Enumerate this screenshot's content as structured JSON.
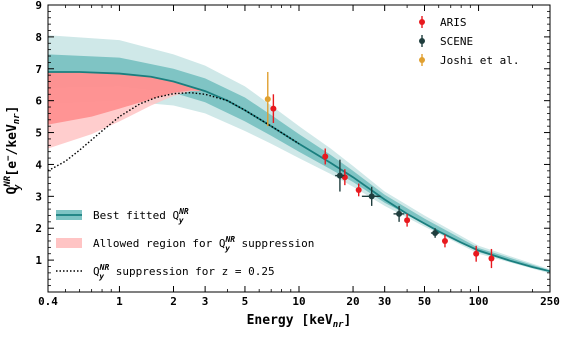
{
  "chart_data": {
    "type": "scatter",
    "xscale": "log",
    "xlim": [
      0.4,
      250
    ],
    "ylim": [
      0,
      9
    ],
    "xlabel": "Energy [keV",
    "xlabel_sub": "nr",
    "xlabel_close": "]",
    "ylabel_main": "Q",
    "ylabel_sub": "y",
    "ylabel_sup": "NR",
    "ylabel_unit": " [e",
    "ylabel_unit2": "/keV",
    "ylabel_unit_sub": "nr",
    "ylabel_close": "]",
    "xticks": [
      {
        "value": 0.4,
        "label": "0.4"
      },
      {
        "value": 1,
        "label": "1"
      },
      {
        "value": 2,
        "label": "2"
      },
      {
        "value": 3,
        "label": "3"
      },
      {
        "value": 5,
        "label": "5"
      },
      {
        "value": 10,
        "label": "10"
      },
      {
        "value": 20,
        "label": "20"
      },
      {
        "value": 30,
        "label": "30"
      },
      {
        "value": 50,
        "label": "50"
      },
      {
        "value": 100,
        "label": "100"
      },
      {
        "value": 250,
        "label": "250"
      }
    ],
    "yticks": [
      {
        "value": 1,
        "label": "1"
      },
      {
        "value": 2,
        "label": "2"
      },
      {
        "value": 3,
        "label": "3"
      },
      {
        "value": 4,
        "label": "4"
      },
      {
        "value": 5,
        "label": "5"
      },
      {
        "value": 6,
        "label": "6"
      },
      {
        "value": 7,
        "label": "7"
      },
      {
        "value": 8,
        "label": "8"
      },
      {
        "value": 9,
        "label": "9"
      }
    ],
    "best_fit": {
      "x": [
        0.4,
        0.6,
        1.0,
        1.5,
        2.0,
        3.0,
        4.0,
        5.0,
        7.0,
        10,
        15,
        20,
        30,
        40,
        60,
        80,
        100,
        150,
        200,
        250
      ],
      "y": [
        6.9,
        6.9,
        6.85,
        6.75,
        6.6,
        6.3,
        6.0,
        5.7,
        5.2,
        4.65,
        4.05,
        3.6,
        2.9,
        2.45,
        1.9,
        1.55,
        1.3,
        0.98,
        0.78,
        0.65
      ],
      "color": "#1a7f7f"
    },
    "band_1sigma": {
      "x": [
        0.4,
        1.0,
        2.0,
        3.0,
        5.0,
        7.0,
        10,
        15,
        20,
        30,
        50,
        100,
        250
      ],
      "lower": [
        6.4,
        6.45,
        6.25,
        5.95,
        5.35,
        4.9,
        4.4,
        3.85,
        3.45,
        2.8,
        2.15,
        1.25,
        0.62
      ],
      "upper": [
        7.45,
        7.35,
        7.0,
        6.7,
        6.1,
        5.55,
        4.95,
        4.3,
        3.8,
        3.05,
        2.3,
        1.38,
        0.68
      ],
      "color": "#7fc4c4"
    },
    "band_2sigma": {
      "x": [
        0.4,
        1.0,
        2.0,
        3.0,
        5.0,
        7.0,
        10,
        15,
        20,
        30,
        50,
        100,
        250
      ],
      "lower": [
        5.9,
        6.0,
        5.85,
        5.6,
        5.05,
        4.65,
        4.2,
        3.7,
        3.3,
        2.7,
        2.05,
        1.2,
        0.58
      ],
      "upper": [
        8.05,
        7.9,
        7.45,
        7.1,
        6.45,
        5.85,
        5.2,
        4.5,
        3.95,
        3.15,
        2.4,
        1.45,
        0.71
      ],
      "color": "#cfe8e8"
    },
    "suppression_region_outer": {
      "x": [
        0.4,
        0.7,
        1.0,
        1.5,
        2.0,
        2.5,
        3.0
      ],
      "lower": [
        4.5,
        4.95,
        5.35,
        5.85,
        6.15,
        6.3,
        6.3
      ],
      "upper": [
        6.9,
        6.9,
        6.85,
        6.75,
        6.6,
        6.45,
        6.3
      ],
      "color": "#ffc4c4"
    },
    "suppression_region_inner": {
      "x": [
        0.4,
        0.7,
        1.0,
        1.5,
        2.0,
        2.5,
        3.0
      ],
      "lower": [
        5.25,
        5.5,
        5.75,
        6.05,
        6.25,
        6.32,
        6.3
      ],
      "upper": [
        6.9,
        6.9,
        6.85,
        6.75,
        6.6,
        6.45,
        6.3
      ],
      "color": "#ff8a8a"
    },
    "suppression_curve": {
      "x": [
        0.4,
        0.5,
        0.6,
        0.8,
        1.0,
        1.3,
        1.6,
        2.0,
        2.5,
        3.0,
        4.0,
        5.0,
        7.0,
        10
      ],
      "y": [
        3.8,
        4.1,
        4.45,
        5.05,
        5.5,
        5.9,
        6.1,
        6.22,
        6.25,
        6.2,
        6.0,
        5.7,
        5.2,
        4.65
      ],
      "color": "#000000"
    },
    "series": [
      {
        "name": "ARIS",
        "color": "#e8191e",
        "points": [
          {
            "x": 7.2,
            "y": 5.75,
            "yerr": 0.45,
            "xerr": 0
          },
          {
            "x": 14,
            "y": 4.25,
            "yerr": 0.25,
            "xerr": 0
          },
          {
            "x": 18,
            "y": 3.6,
            "yerr": 0.25,
            "xerr": 0
          },
          {
            "x": 21.5,
            "y": 3.2,
            "yerr": 0.2,
            "xerr": 0
          },
          {
            "x": 40,
            "y": 2.25,
            "yerr": 0.2,
            "xerr": 0
          },
          {
            "x": 65,
            "y": 1.6,
            "yerr": 0.2,
            "xerr": 0
          },
          {
            "x": 97,
            "y": 1.2,
            "yerr": 0.25,
            "xerr": 0
          },
          {
            "x": 118,
            "y": 1.05,
            "yerr": 0.3,
            "xerr": 0
          }
        ]
      },
      {
        "name": "SCENE",
        "color": "#1f3d3d",
        "points": [
          {
            "x": 16.9,
            "y": 3.65,
            "yerr": 0.5,
            "xerr": 1.0
          },
          {
            "x": 25.4,
            "y": 3.0,
            "yerr": 0.3,
            "xerr": 3.0
          },
          {
            "x": 36.1,
            "y": 2.45,
            "yerr": 0.25,
            "xerr": 2.5
          },
          {
            "x": 57.3,
            "y": 1.85,
            "yerr": 0.15,
            "xerr": 3.0
          }
        ]
      },
      {
        "name": "Joshi et al.",
        "color": "#e0a030",
        "points": [
          {
            "x": 6.7,
            "y": 6.05,
            "yerr": 0.85,
            "xerr": 0
          }
        ]
      }
    ],
    "legend_top": [
      {
        "label": "ARIS",
        "color": "#e8191e"
      },
      {
        "label": "SCENE",
        "color": "#1f3d3d"
      },
      {
        "label": "Joshi et al.",
        "color": "#e0a030"
      }
    ],
    "legend_bottom": [
      {
        "kind": "fit",
        "label": "Best fitted Q",
        "sub": "y",
        "sup": "NR",
        "tail": ""
      },
      {
        "kind": "region",
        "label": "Allowed region for Q",
        "sub": "y",
        "sup": "NR",
        "tail": " suppression"
      },
      {
        "kind": "curve",
        "label": "Q",
        "sub": "y",
        "sup": "NR",
        "tail": " suppression for z = 0.25"
      }
    ]
  }
}
